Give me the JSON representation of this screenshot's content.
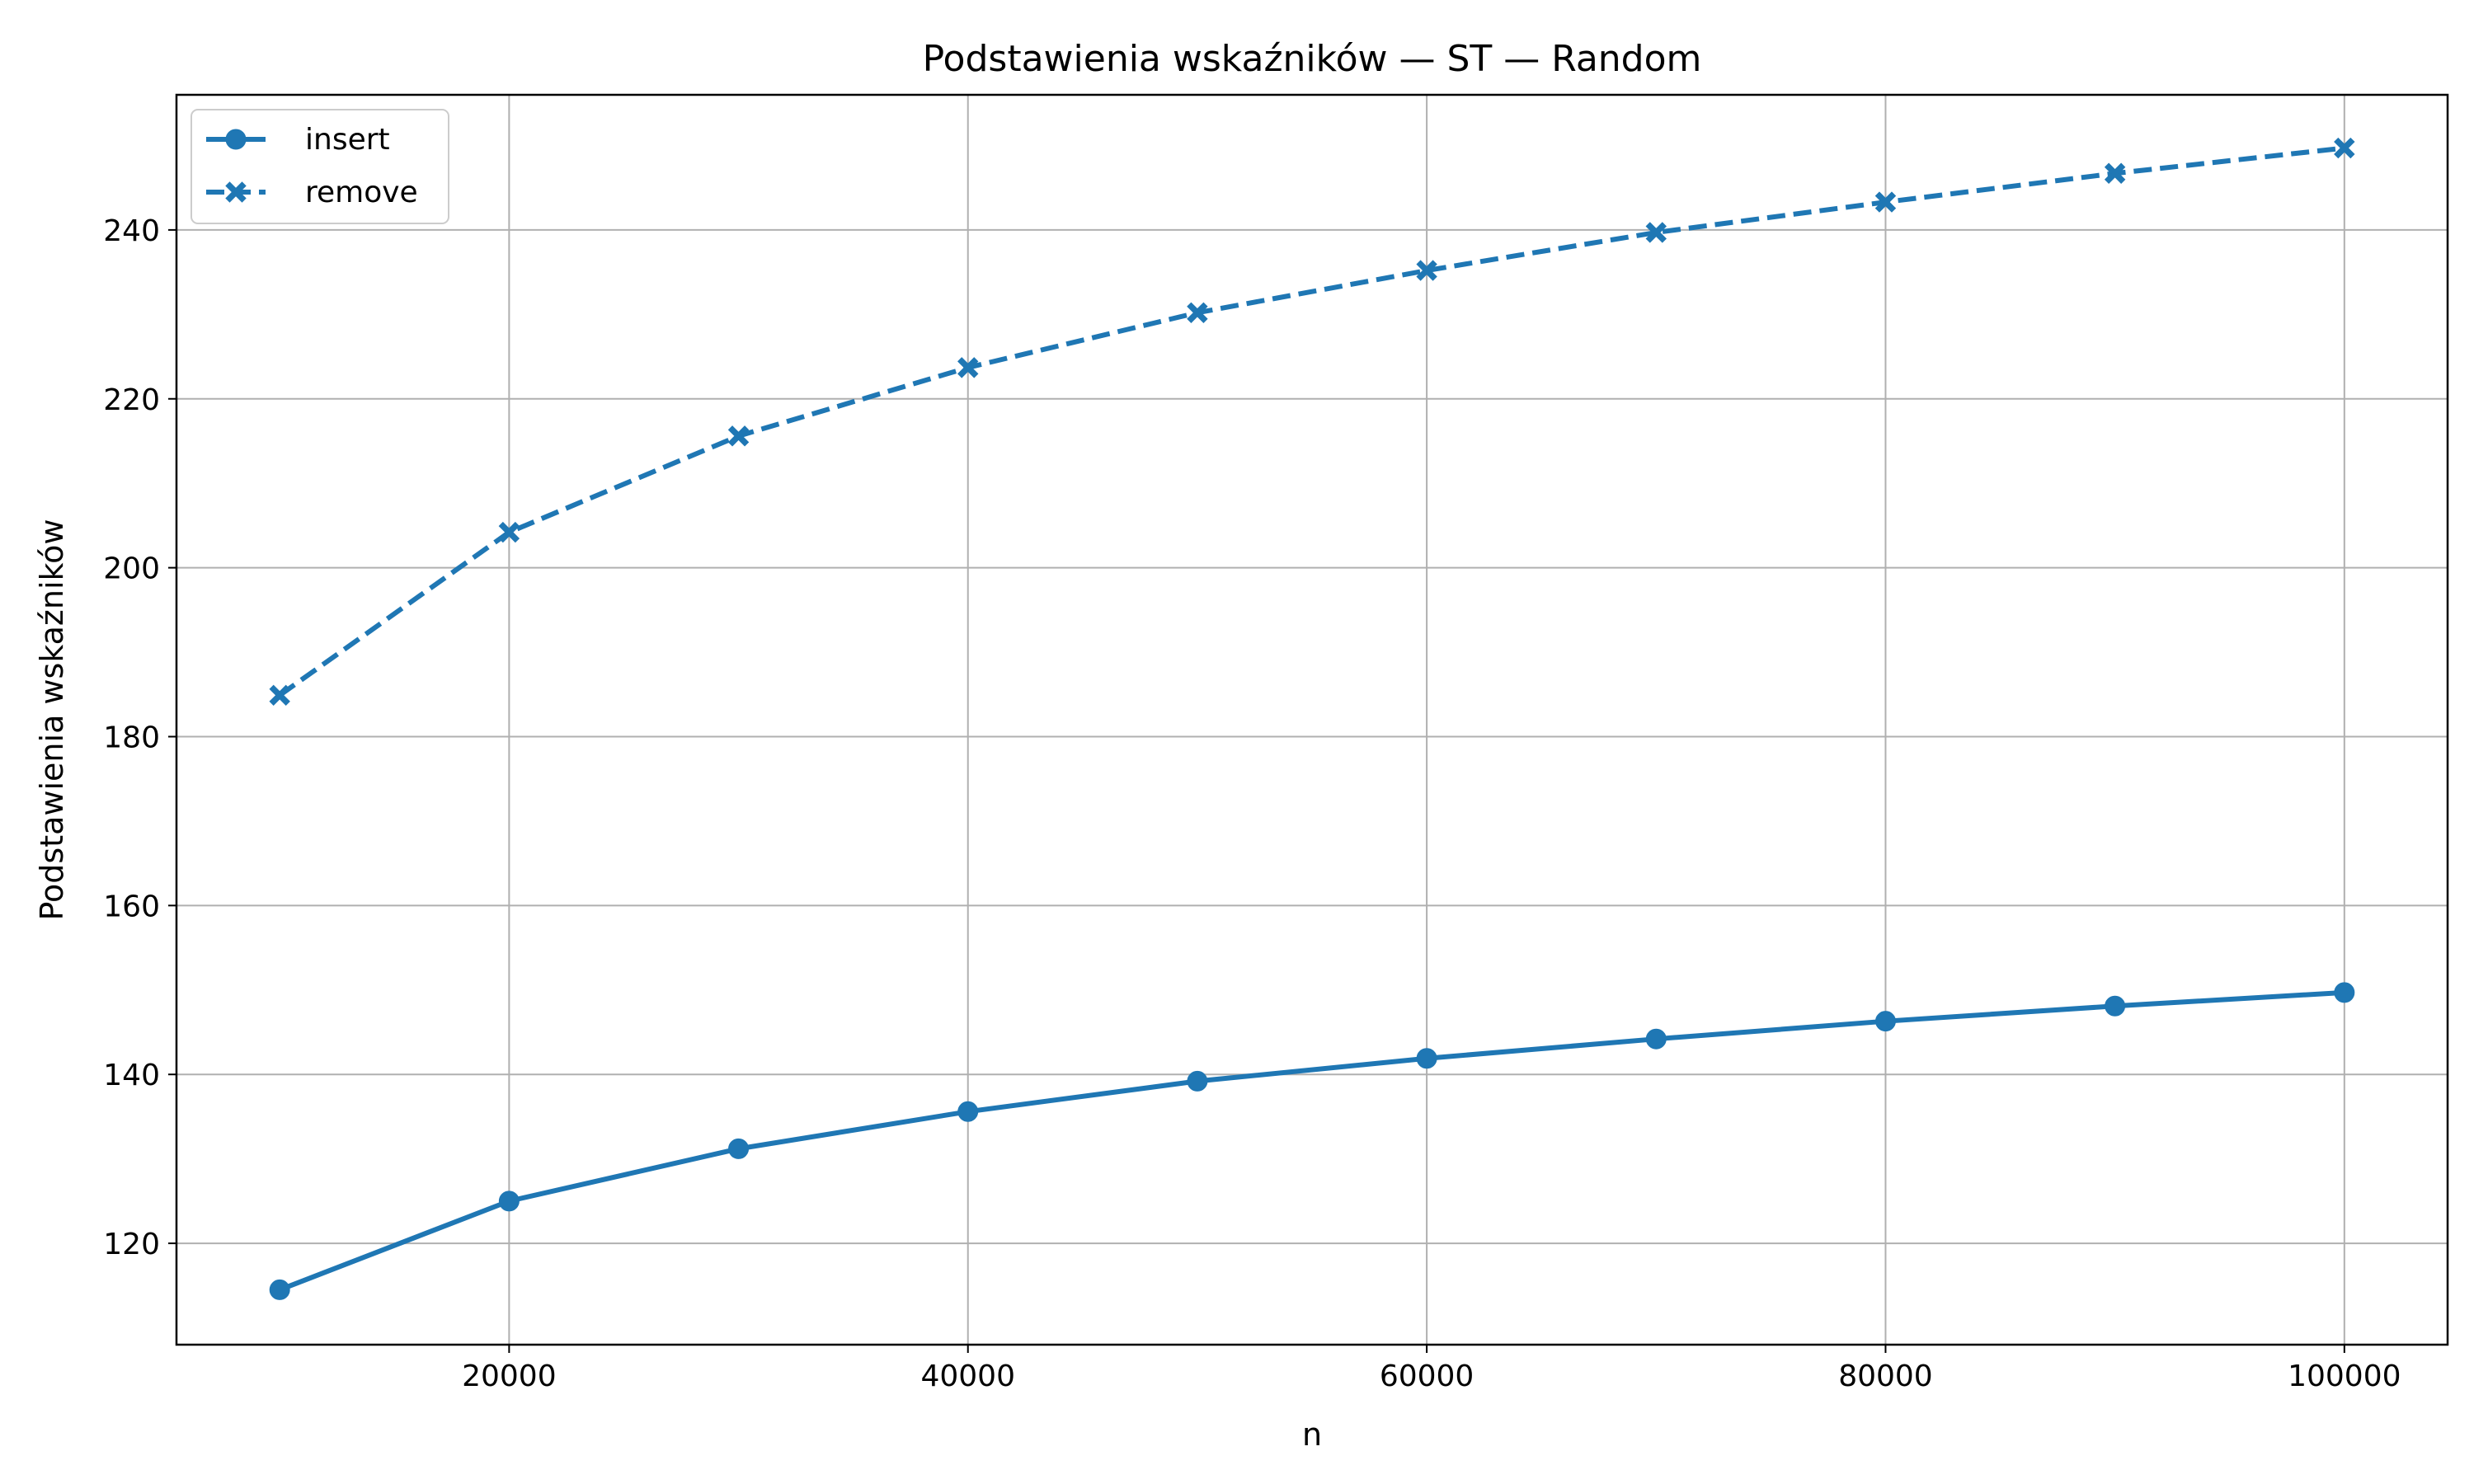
{
  "chart_data": {
    "type": "line",
    "title": "Podstawienia wskaźników — ST — Random",
    "xlabel": "n",
    "ylabel": "Podstawienia wskaźników",
    "x": [
      10000,
      20000,
      30000,
      40000,
      50000,
      60000,
      70000,
      80000,
      90000,
      100000
    ],
    "xlim": [
      5500,
      104500
    ],
    "ylim": [
      108,
      256
    ],
    "xticks": [
      20000,
      40000,
      60000,
      80000,
      100000
    ],
    "yticks": [
      120,
      140,
      160,
      180,
      200,
      220,
      240
    ],
    "grid": true,
    "legend_position": "top-left",
    "series": [
      {
        "name": "insert",
        "values": [
          114.5,
          125.0,
          131.2,
          135.6,
          139.2,
          141.9,
          144.2,
          146.3,
          148.1,
          149.7
        ],
        "color": "#1f77b4",
        "line_style": "solid",
        "marker": "circle"
      },
      {
        "name": "remove",
        "values": [
          184.9,
          204.2,
          215.6,
          223.7,
          230.2,
          235.2,
          239.7,
          243.3,
          246.7,
          249.7
        ],
        "color": "#1f77b4",
        "line_style": "dashed",
        "marker": "x-filled"
      }
    ]
  }
}
